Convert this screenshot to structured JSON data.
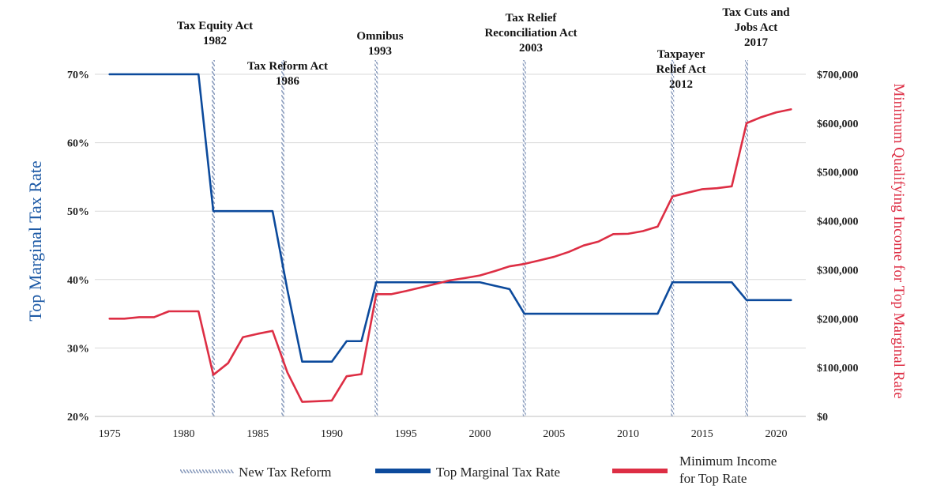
{
  "chart_data": {
    "type": "line",
    "xlabel": "",
    "ylabel": "Top Marginal Tax Rate",
    "y2label": "Minimum Qualifying Income for Top Marginal Rate",
    "xlim": [
      1974,
      2022
    ],
    "ylim": [
      20,
      70
    ],
    "y2lim": [
      0,
      700000
    ],
    "x_ticks": [
      1975,
      1980,
      1985,
      1990,
      1995,
      2000,
      2005,
      2010,
      2015,
      2020
    ],
    "x_tick_labels": [
      "1975",
      "1980",
      "1985",
      "1990",
      "1995",
      "2000",
      "2005",
      "2010",
      "2015",
      "2020"
    ],
    "y_ticks": [
      20,
      30,
      40,
      50,
      60,
      70
    ],
    "y_tick_labels": [
      "20%",
      "30%",
      "40%",
      "50%",
      "60%",
      "70%"
    ],
    "y2_ticks": [
      0,
      100000,
      200000,
      300000,
      400000,
      500000,
      600000,
      700000
    ],
    "y2_tick_labels": [
      "$0",
      "$100,000",
      "$200,000",
      "$300,000",
      "$400,000",
      "$500,000",
      "$600,000",
      "$700,000"
    ],
    "grid": true,
    "legend_position": "bottom",
    "series": [
      {
        "name": "Top Marginal Tax Rate",
        "axis": "left",
        "color": "#0c4a9c",
        "points": [
          [
            1975,
            70
          ],
          [
            1981,
            70
          ],
          [
            1982,
            50
          ],
          [
            1986,
            50
          ],
          [
            1987,
            38.5
          ],
          [
            1988,
            28
          ],
          [
            1990,
            28
          ],
          [
            1991,
            31
          ],
          [
            1992,
            31
          ],
          [
            1993,
            39.6
          ],
          [
            2000,
            39.6
          ],
          [
            2001,
            39.1
          ],
          [
            2002,
            38.6
          ],
          [
            2003,
            35
          ],
          [
            2012,
            35
          ],
          [
            2013,
            39.6
          ],
          [
            2017,
            39.6
          ],
          [
            2018,
            37
          ],
          [
            2021,
            37
          ]
        ]
      },
      {
        "name": "Minimum Income for Top Rate",
        "axis": "right",
        "color": "#dd2e44",
        "points": [
          [
            1975,
            200000
          ],
          [
            1976,
            200000
          ],
          [
            1977,
            203000
          ],
          [
            1978,
            203000
          ],
          [
            1979,
            215000
          ],
          [
            1980,
            215000
          ],
          [
            1981,
            215000
          ],
          [
            1982,
            85000
          ],
          [
            1983,
            109000
          ],
          [
            1984,
            162000
          ],
          [
            1985,
            169000
          ],
          [
            1986,
            175000
          ],
          [
            1987,
            90000
          ],
          [
            1988,
            29750
          ],
          [
            1989,
            30950
          ],
          [
            1990,
            32450
          ],
          [
            1991,
            82150
          ],
          [
            1992,
            86500
          ],
          [
            1993,
            250000
          ],
          [
            1994,
            250000
          ],
          [
            1995,
            256500
          ],
          [
            1996,
            263750
          ],
          [
            1997,
            271050
          ],
          [
            1998,
            278450
          ],
          [
            1999,
            283150
          ],
          [
            2000,
            288350
          ],
          [
            2001,
            297350
          ],
          [
            2002,
            307050
          ],
          [
            2003,
            311950
          ],
          [
            2004,
            319100
          ],
          [
            2005,
            326450
          ],
          [
            2006,
            336550
          ],
          [
            2007,
            349700
          ],
          [
            2008,
            357700
          ],
          [
            2009,
            372950
          ],
          [
            2010,
            373650
          ],
          [
            2011,
            379150
          ],
          [
            2012,
            388350
          ],
          [
            2013,
            450000
          ],
          [
            2014,
            457600
          ],
          [
            2015,
            464850
          ],
          [
            2016,
            466950
          ],
          [
            2017,
            470700
          ],
          [
            2018,
            600000
          ],
          [
            2019,
            612350
          ],
          [
            2020,
            622050
          ],
          [
            2021,
            628300
          ]
        ]
      }
    ],
    "reforms": [
      {
        "year": 1982,
        "lines": [
          "Tax Equity Act",
          "1982"
        ]
      },
      {
        "year": 1986.7,
        "lines": [
          "Tax Reform Act",
          "1986"
        ]
      },
      {
        "year": 1993,
        "lines": [
          "Omnibus",
          "1993"
        ]
      },
      {
        "year": 2003,
        "lines": [
          "Tax Relief",
          "Reconciliation Act",
          "2003"
        ]
      },
      {
        "year": 2013,
        "lines": [
          "Taxpayer",
          "Relief Act",
          "2012"
        ]
      },
      {
        "year": 2018,
        "lines": [
          "Tax Cuts and",
          "Jobs Act",
          "2017"
        ]
      }
    ],
    "legend": [
      {
        "key": "reform",
        "label": "New Tax Reform"
      },
      {
        "key": "rate",
        "label": "Top Marginal Tax Rate"
      },
      {
        "key": "income",
        "label": "Minimum Income",
        "label2": "for Top Rate"
      }
    ]
  }
}
